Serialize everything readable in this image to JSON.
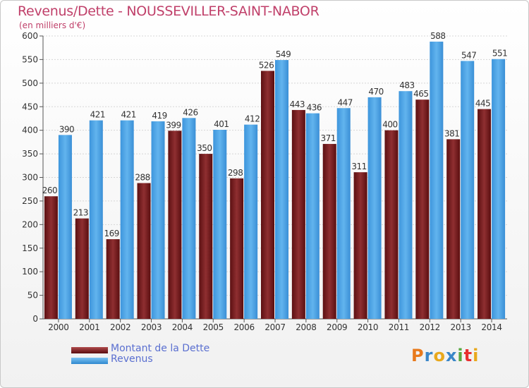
{
  "header": {
    "title": "Revenus/Dette - NOUSSEVILLER-SAINT-NABOR",
    "subtitle": "(en milliers d'€)"
  },
  "legend": [
    {
      "label": "Montant de la Dette",
      "color": "#8a2628"
    },
    {
      "label": "Revenus",
      "color": "#4aa3e6"
    }
  ],
  "logo": {
    "text": "Proxiti",
    "colors": [
      "#e87a1c",
      "#3a86c8",
      "#e8a81c",
      "#3a86c8",
      "#58a840",
      "#e82f2f",
      "#e8a81c"
    ]
  },
  "chart_data": {
    "type": "bar",
    "title": "Revenus/Dette - NOUSSEVILLER-SAINT-NABOR",
    "ylabel": "(en milliers d'€)",
    "xlabel": "",
    "categories": [
      "2000",
      "2001",
      "2002",
      "2003",
      "2004",
      "2005",
      "2006",
      "2007",
      "2008",
      "2009",
      "2010",
      "2011",
      "2012",
      "2013",
      "2014"
    ],
    "series": [
      {
        "name": "Montant de la Dette",
        "color": "#8a2628",
        "values": [
          260,
          213,
          169,
          288,
          399,
          350,
          298,
          526,
          443,
          371,
          311,
          400,
          465,
          381,
          445
        ]
      },
      {
        "name": "Revenus",
        "color": "#4aa3e6",
        "values": [
          390,
          421,
          421,
          419,
          426,
          401,
          412,
          549,
          436,
          447,
          470,
          483,
          588,
          547,
          551
        ]
      }
    ],
    "ylim": [
      0,
      600
    ],
    "ytick_step": 50,
    "grid": true,
    "legend_position": "bottom-left"
  }
}
